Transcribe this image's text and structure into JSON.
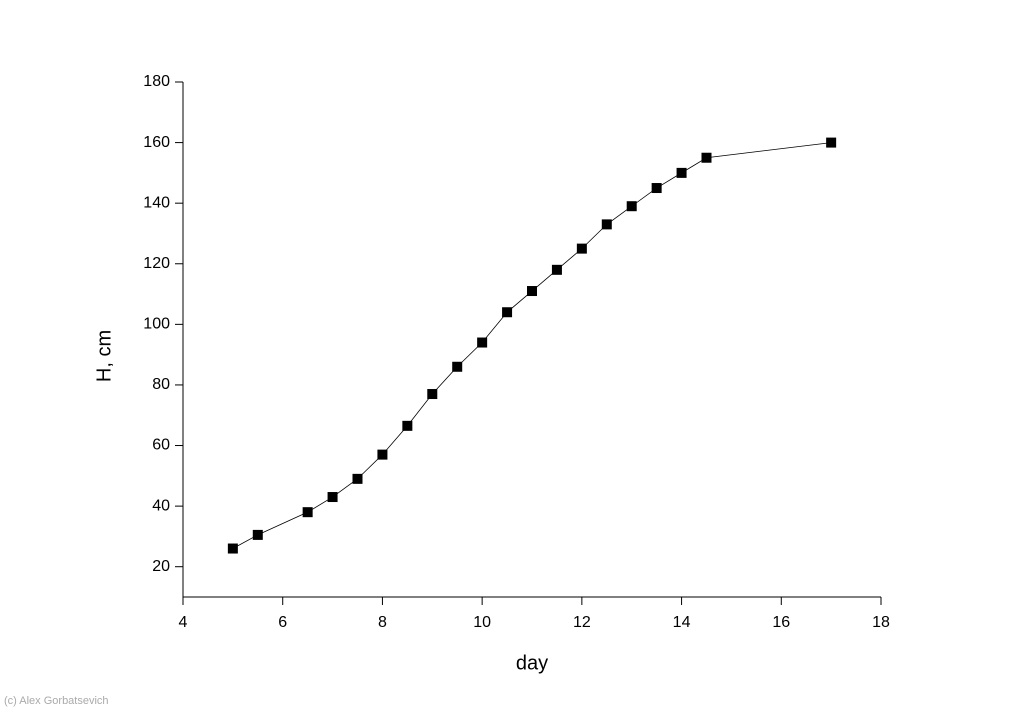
{
  "chart_data": {
    "type": "line",
    "x_label": "day",
    "y_label": "H, cm",
    "x": [
      5,
      5.5,
      6.5,
      7,
      7.5,
      8,
      8.5,
      9,
      9.5,
      10,
      10.5,
      11,
      11.5,
      12,
      12.5,
      13,
      13.5,
      14,
      14.5,
      17
    ],
    "series": [
      {
        "color": "#000000",
        "values": [
          26,
          30.5,
          38,
          43,
          49,
          57,
          66.5,
          77,
          86,
          94,
          104,
          111,
          118,
          125,
          133,
          139,
          145,
          150,
          155,
          160
        ]
      }
    ],
    "xlim": [
      4,
      18
    ],
    "xticks": [
      4,
      6,
      8,
      10,
      12,
      14,
      16,
      18
    ],
    "ylim": [
      10,
      180
    ],
    "yticks": [
      20,
      40,
      60,
      80,
      100,
      120,
      140,
      160,
      180
    ],
    "credit": "(c) Alex Gorbatsevich"
  }
}
